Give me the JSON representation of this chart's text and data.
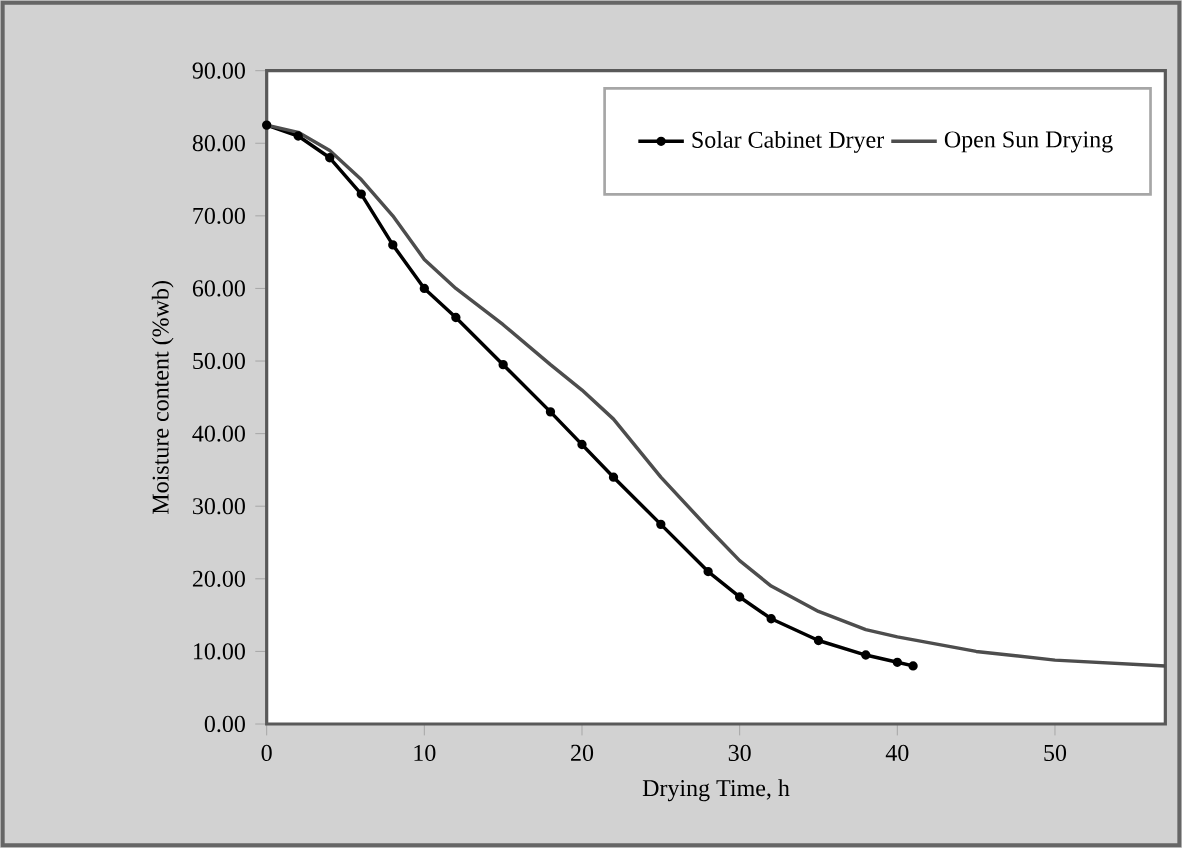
{
  "chart_data": {
    "type": "line",
    "xlabel": "Drying Time,  h",
    "ylabel": "Moisture content  (%wb)",
    "xlim": [
      0,
      57
    ],
    "xticks": [
      0,
      10,
      20,
      30,
      40,
      50
    ],
    "ylim": [
      0,
      90
    ],
    "yticks": [
      {
        "value": 0,
        "label": "0.00"
      },
      {
        "value": 10,
        "label": "10.00"
      },
      {
        "value": 20,
        "label": "20.00"
      },
      {
        "value": 30,
        "label": "30.00"
      },
      {
        "value": 40,
        "label": "40.00"
      },
      {
        "value": 50,
        "label": "50.00"
      },
      {
        "value": 60,
        "label": "60.00"
      },
      {
        "value": 70,
        "label": "70.00"
      },
      {
        "value": 80,
        "label": "80.00"
      },
      {
        "value": 90,
        "label": "90.00"
      }
    ],
    "grid": false,
    "legend": "top right",
    "line_style": "solid",
    "series": [
      {
        "name": "Solar Cabinet Dryer",
        "color": "#000000",
        "marker": "circle",
        "x": [
          0,
          2,
          4,
          6,
          8,
          10,
          12,
          15,
          18,
          20,
          22,
          25,
          28,
          30,
          32,
          35,
          38,
          40,
          41
        ],
        "values": [
          82.5,
          81,
          78,
          73,
          66,
          60,
          56,
          49.5,
          43,
          38.5,
          34,
          27.5,
          21,
          17.5,
          14.5,
          11.5,
          9.5,
          8.5,
          8
        ]
      },
      {
        "name": "Open Sun Drying",
        "color": "#4d4d4d",
        "marker": "none",
        "x": [
          0,
          2,
          4,
          6,
          8,
          10,
          12,
          15,
          18,
          20,
          22,
          25,
          28,
          30,
          32,
          35,
          38,
          40,
          45,
          50,
          57
        ],
        "values": [
          82.5,
          81.5,
          79,
          75,
          70,
          64,
          60,
          55,
          49.5,
          46,
          42,
          34,
          27,
          22.5,
          19,
          15.5,
          13,
          12,
          10,
          8.8,
          8
        ]
      }
    ]
  }
}
